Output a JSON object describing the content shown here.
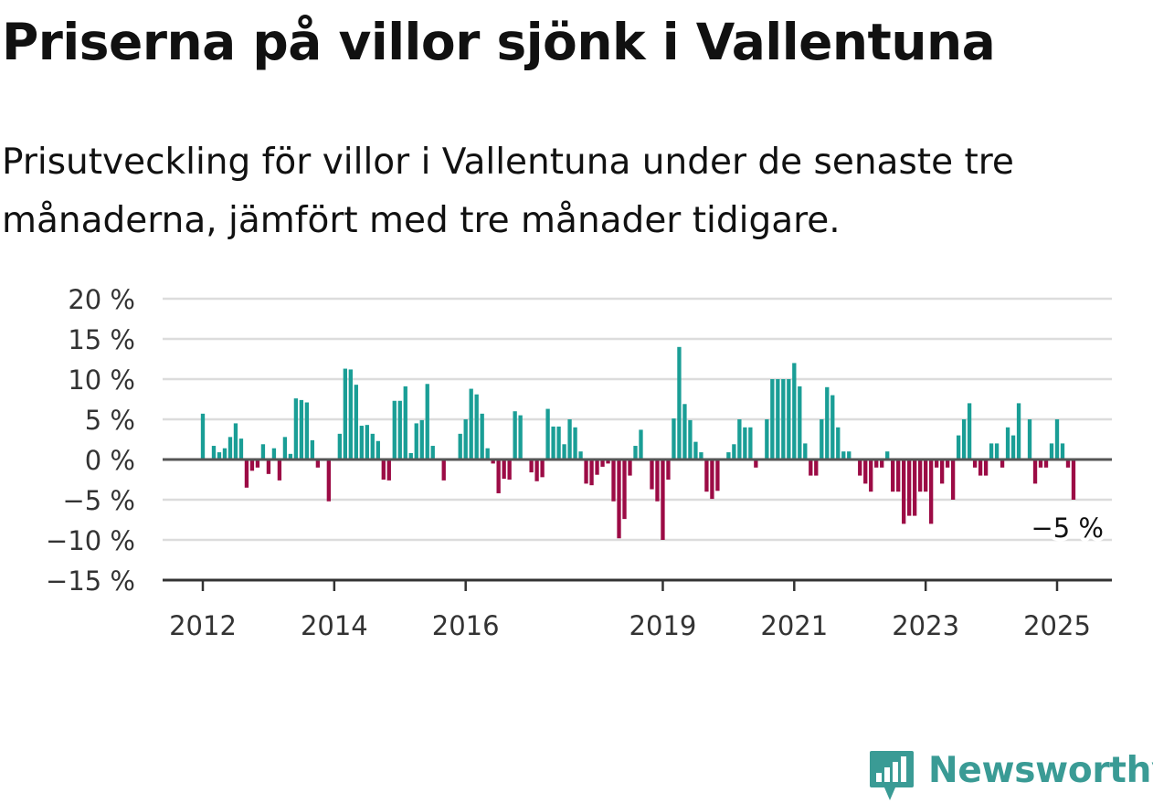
{
  "title": "Priserna på villor sjönk i Vallentuna",
  "subtitle": "Prisutveckling för villor i Vallentuna under de senaste tre månaderna, jämfört med tre månader tidigare.",
  "brand": {
    "name": "Newsworthy",
    "logo_icon": "bar-chart-speech-bubble-icon",
    "color": "#3a9b95"
  },
  "chart_data": {
    "type": "bar",
    "x_unit": "month",
    "x_start": "2012-01",
    "x_end": "2025-03",
    "y_ticks": [
      {
        "value": 20,
        "label": "20 %"
      },
      {
        "value": 15,
        "label": "15 %"
      },
      {
        "value": 10,
        "label": "10 %"
      },
      {
        "value": 5,
        "label": "5 %"
      },
      {
        "value": 0,
        "label": "0 %"
      },
      {
        "value": -5,
        "label": "−5 %"
      },
      {
        "value": -10,
        "label": "−10 %"
      },
      {
        "value": -15,
        "label": "−15 %"
      }
    ],
    "x_ticks": [
      {
        "date": "2012-01",
        "label": "2012"
      },
      {
        "date": "2014-01",
        "label": "2014"
      },
      {
        "date": "2016-01",
        "label": "2016"
      },
      {
        "date": "2019-01",
        "label": "2019"
      },
      {
        "date": "2021-01",
        "label": "2021"
      },
      {
        "date": "2023-01",
        "label": "2023"
      },
      {
        "date": "2025-01",
        "label": "2025"
      }
    ],
    "ylim": [
      -15,
      20
    ],
    "positive_color": "#1a9e96",
    "negative_color": "#9c0b45",
    "grid": true,
    "last_value_label": "−5 %",
    "series": [
      {
        "values": [
          5.7,
          0,
          1.7,
          0.9,
          1.4,
          2.8,
          4.5,
          2.6,
          -3.5,
          -1.4,
          -1.0,
          1.9,
          -1.8,
          1.4,
          -2.6,
          2.8,
          0.7,
          7.6,
          7.4,
          7.1,
          2.4,
          -1.0,
          0,
          -5.2,
          0,
          3.2,
          11.3,
          11.2,
          9.3,
          4.2,
          4.3,
          3.2,
          2.3,
          -2.5,
          -2.6,
          7.3,
          7.3,
          9.1,
          0.8,
          4.5,
          4.9,
          9.4,
          1.7,
          0,
          -2.6,
          0,
          0,
          3.2,
          5.0,
          8.8,
          8.1,
          5.7,
          1.4,
          -0.5,
          -4.2,
          -2.4,
          -2.5,
          6.0,
          5.5,
          0,
          -1.6,
          -2.7,
          -2.2,
          6.3,
          4.1,
          4.1,
          1.9,
          5.0,
          4.0,
          1.0,
          -3.0,
          -3.2,
          -1.9,
          -0.9,
          -0.5,
          -5.2,
          -9.8,
          -7.4,
          -2.0,
          1.7,
          3.7,
          0,
          -3.7,
          -5.2,
          -10.0,
          -2.5,
          5.1,
          14.0,
          6.9,
          4.9,
          2.2,
          0.9,
          -4.0,
          -4.9,
          -3.9,
          0,
          0.9,
          1.9,
          5.0,
          4.0,
          4.0,
          -1.0,
          0,
          5.0,
          10.0,
          10.0,
          10.0,
          10.0,
          12.0,
          9.1,
          2.0,
          -2.0,
          -2.0,
          5.0,
          9.0,
          8.0,
          4.0,
          1.0,
          1.0,
          0,
          -2.0,
          -3.0,
          -4.0,
          -1.0,
          -1.0,
          1.0,
          -4.0,
          -4.0,
          -8.0,
          -7.0,
          -7.0,
          -4.0,
          -4.0,
          -8.0,
          -1.0,
          -3.0,
          -1.0,
          -5.0,
          3.0,
          5.0,
          7.0,
          -1.0,
          -2.0,
          -2.0,
          2.0,
          2.0,
          -1.0,
          4.0,
          3.0,
          7.0,
          0,
          5.0,
          -3.0,
          -1.0,
          -1.0,
          2.0,
          5.0,
          2.0,
          -1.0,
          -5.0
        ]
      }
    ]
  }
}
